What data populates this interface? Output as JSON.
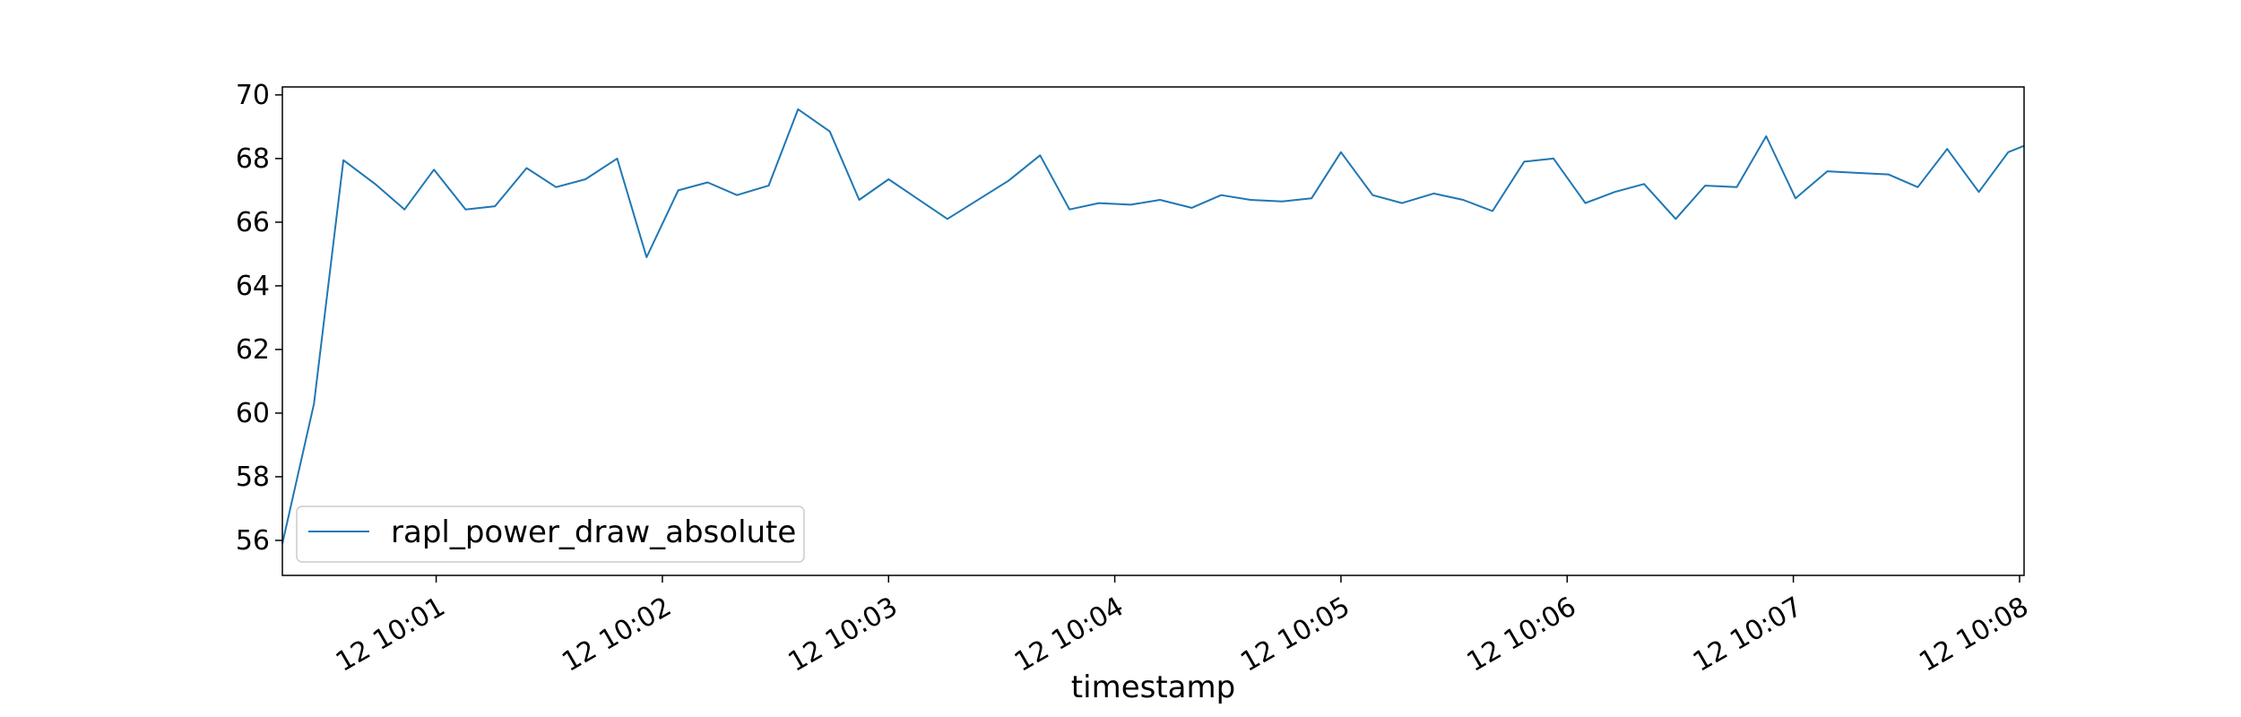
{
  "chart_data": {
    "type": "line",
    "title": "",
    "xlabel": "timestamp",
    "ylabel": "",
    "x_tick_labels": [
      "12 10:01",
      "12 10:02",
      "12 10:03",
      "12 10:04",
      "12 10:05",
      "12 10:06",
      "12 10:07",
      "12 10:08"
    ],
    "x_tick_minutes": [
      1,
      2,
      3,
      4,
      5,
      6,
      7,
      8
    ],
    "y_ticks": [
      56,
      58,
      60,
      62,
      64,
      66,
      68,
      70
    ],
    "xlim": [
      0.32,
      8.02
    ],
    "ylim": [
      54.9,
      70.25
    ],
    "grid": false,
    "legend_position": "lower-left",
    "colors": {
      "series": "#1f77b4",
      "axes": "#000000",
      "legend_border": "#cccccc"
    },
    "series": [
      {
        "name": "rapl_power_draw_absolute",
        "x": [
          0.32,
          0.46,
          0.59,
          0.73,
          0.86,
          0.99,
          1.13,
          1.26,
          1.4,
          1.53,
          1.66,
          1.8,
          1.93,
          2.07,
          2.2,
          2.33,
          2.47,
          2.6,
          2.74,
          2.87,
          3.0,
          3.26,
          3.53,
          3.67,
          3.8,
          3.93,
          4.07,
          4.2,
          4.34,
          4.47,
          4.6,
          4.74,
          4.87,
          5.0,
          5.14,
          5.27,
          5.41,
          5.54,
          5.67,
          5.81,
          5.94,
          6.08,
          6.21,
          6.34,
          6.48,
          6.61,
          6.75,
          6.88,
          7.01,
          7.15,
          7.28,
          7.42,
          7.55,
          7.68,
          7.82,
          7.95,
          8.02
        ],
        "values": [
          55.9,
          60.3,
          67.95,
          67.2,
          66.4,
          67.65,
          66.4,
          66.5,
          67.7,
          67.1,
          67.35,
          68.0,
          64.9,
          67.0,
          67.25,
          66.85,
          67.15,
          69.55,
          68.85,
          66.7,
          67.35,
          66.1,
          67.3,
          68.1,
          66.4,
          66.6,
          66.55,
          66.7,
          66.45,
          66.85,
          66.7,
          66.65,
          66.75,
          68.2,
          66.85,
          66.6,
          66.9,
          66.7,
          66.35,
          67.9,
          68.0,
          66.6,
          66.95,
          67.2,
          66.1,
          67.15,
          67.1,
          68.7,
          66.75,
          67.6,
          67.55,
          67.5,
          67.1,
          68.3,
          66.95,
          68.2,
          68.4
        ]
      }
    ]
  }
}
